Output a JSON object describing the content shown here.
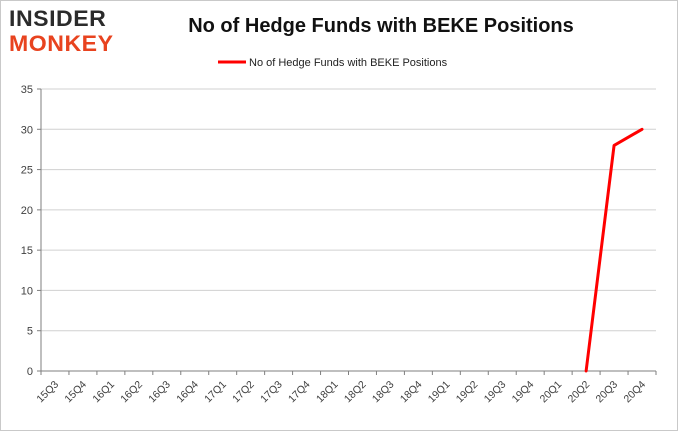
{
  "logo": {
    "line1": "INSIDER",
    "line2": "MONKEY"
  },
  "chart_data": {
    "type": "line",
    "title": "No of Hedge Funds with BEKE Positions",
    "xlabel": "",
    "ylabel": "",
    "categories": [
      "15Q3",
      "15Q4",
      "16Q1",
      "16Q2",
      "16Q3",
      "16Q4",
      "17Q1",
      "17Q2",
      "17Q3",
      "17Q4",
      "18Q1",
      "18Q2",
      "18Q3",
      "18Q4",
      "19Q1",
      "19Q2",
      "19Q3",
      "19Q4",
      "20Q1",
      "20Q2",
      "20Q3",
      "20Q4"
    ],
    "series": [
      {
        "name": "No of Hedge Funds with BEKE Positions",
        "color": "#ff0000",
        "values": [
          null,
          null,
          null,
          null,
          null,
          null,
          null,
          null,
          null,
          null,
          null,
          null,
          null,
          null,
          null,
          null,
          null,
          null,
          null,
          0,
          28,
          30
        ]
      }
    ],
    "ylim": [
      0,
      35
    ],
    "yticks": [
      0,
      5,
      10,
      15,
      20,
      25,
      30,
      35
    ],
    "grid": true,
    "legend": "top-center",
    "colors": {
      "grid": "#d0d0d0",
      "axis": "#7f7f7f",
      "text": "#404040"
    }
  }
}
